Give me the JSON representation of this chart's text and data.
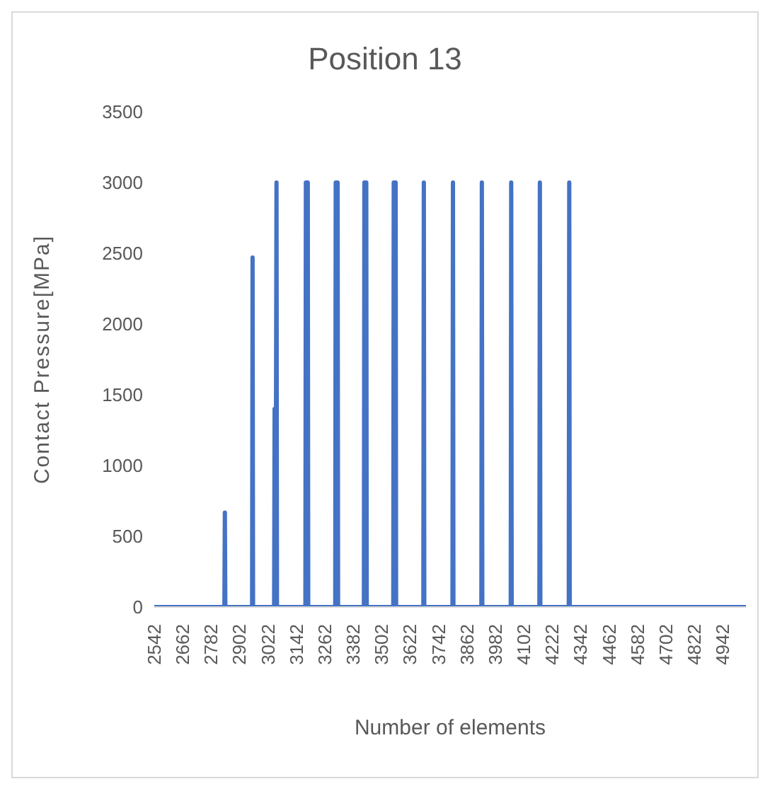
{
  "chart_data": {
    "type": "line",
    "title": "Position 13",
    "xlabel": "Number of elements",
    "ylabel": "Contact Pressure[MPa]",
    "xlim": [
      2542,
      5040
    ],
    "xticks": [
      2542,
      2662,
      2782,
      2902,
      3022,
      3142,
      3262,
      3382,
      3502,
      3622,
      3742,
      3862,
      3982,
      4102,
      4222,
      4342,
      4462,
      4582,
      4702,
      4822,
      4942
    ],
    "ylim": [
      0,
      3500
    ],
    "yticks": [
      0,
      500,
      1000,
      1500,
      2000,
      2500,
      3000,
      3500
    ],
    "grid": false,
    "legend": false,
    "marker": "none",
    "line_style": "solid",
    "series": [
      {
        "color": "#4472c4",
        "x": [
          2542,
          2838,
          2840,
          2842,
          2955,
          2957,
          2959,
          3048,
          3050,
          3056,
          3058,
          3060,
          3180,
          3182,
          3190,
          3192,
          3306,
          3308,
          3316,
          3318,
          3427,
          3429,
          3437,
          3439,
          3551,
          3553,
          3561,
          3563,
          3678,
          3680,
          3682,
          3801,
          3803,
          3805,
          3923,
          3925,
          3927,
          4047,
          4049,
          4051,
          4168,
          4170,
          4172,
          4292,
          4294,
          4296,
          5040
        ],
        "values": [
          0,
          0,
          667,
          0,
          0,
          2470,
          0,
          0,
          1400,
          1400,
          3000,
          0,
          0,
          3000,
          3000,
          0,
          0,
          3000,
          3000,
          0,
          0,
          3000,
          3000,
          0,
          0,
          3000,
          3000,
          0,
          0,
          3000,
          0,
          0,
          3000,
          0,
          0,
          3000,
          0,
          0,
          3000,
          0,
          0,
          3000,
          0,
          0,
          3000,
          0,
          0
        ]
      }
    ]
  }
}
